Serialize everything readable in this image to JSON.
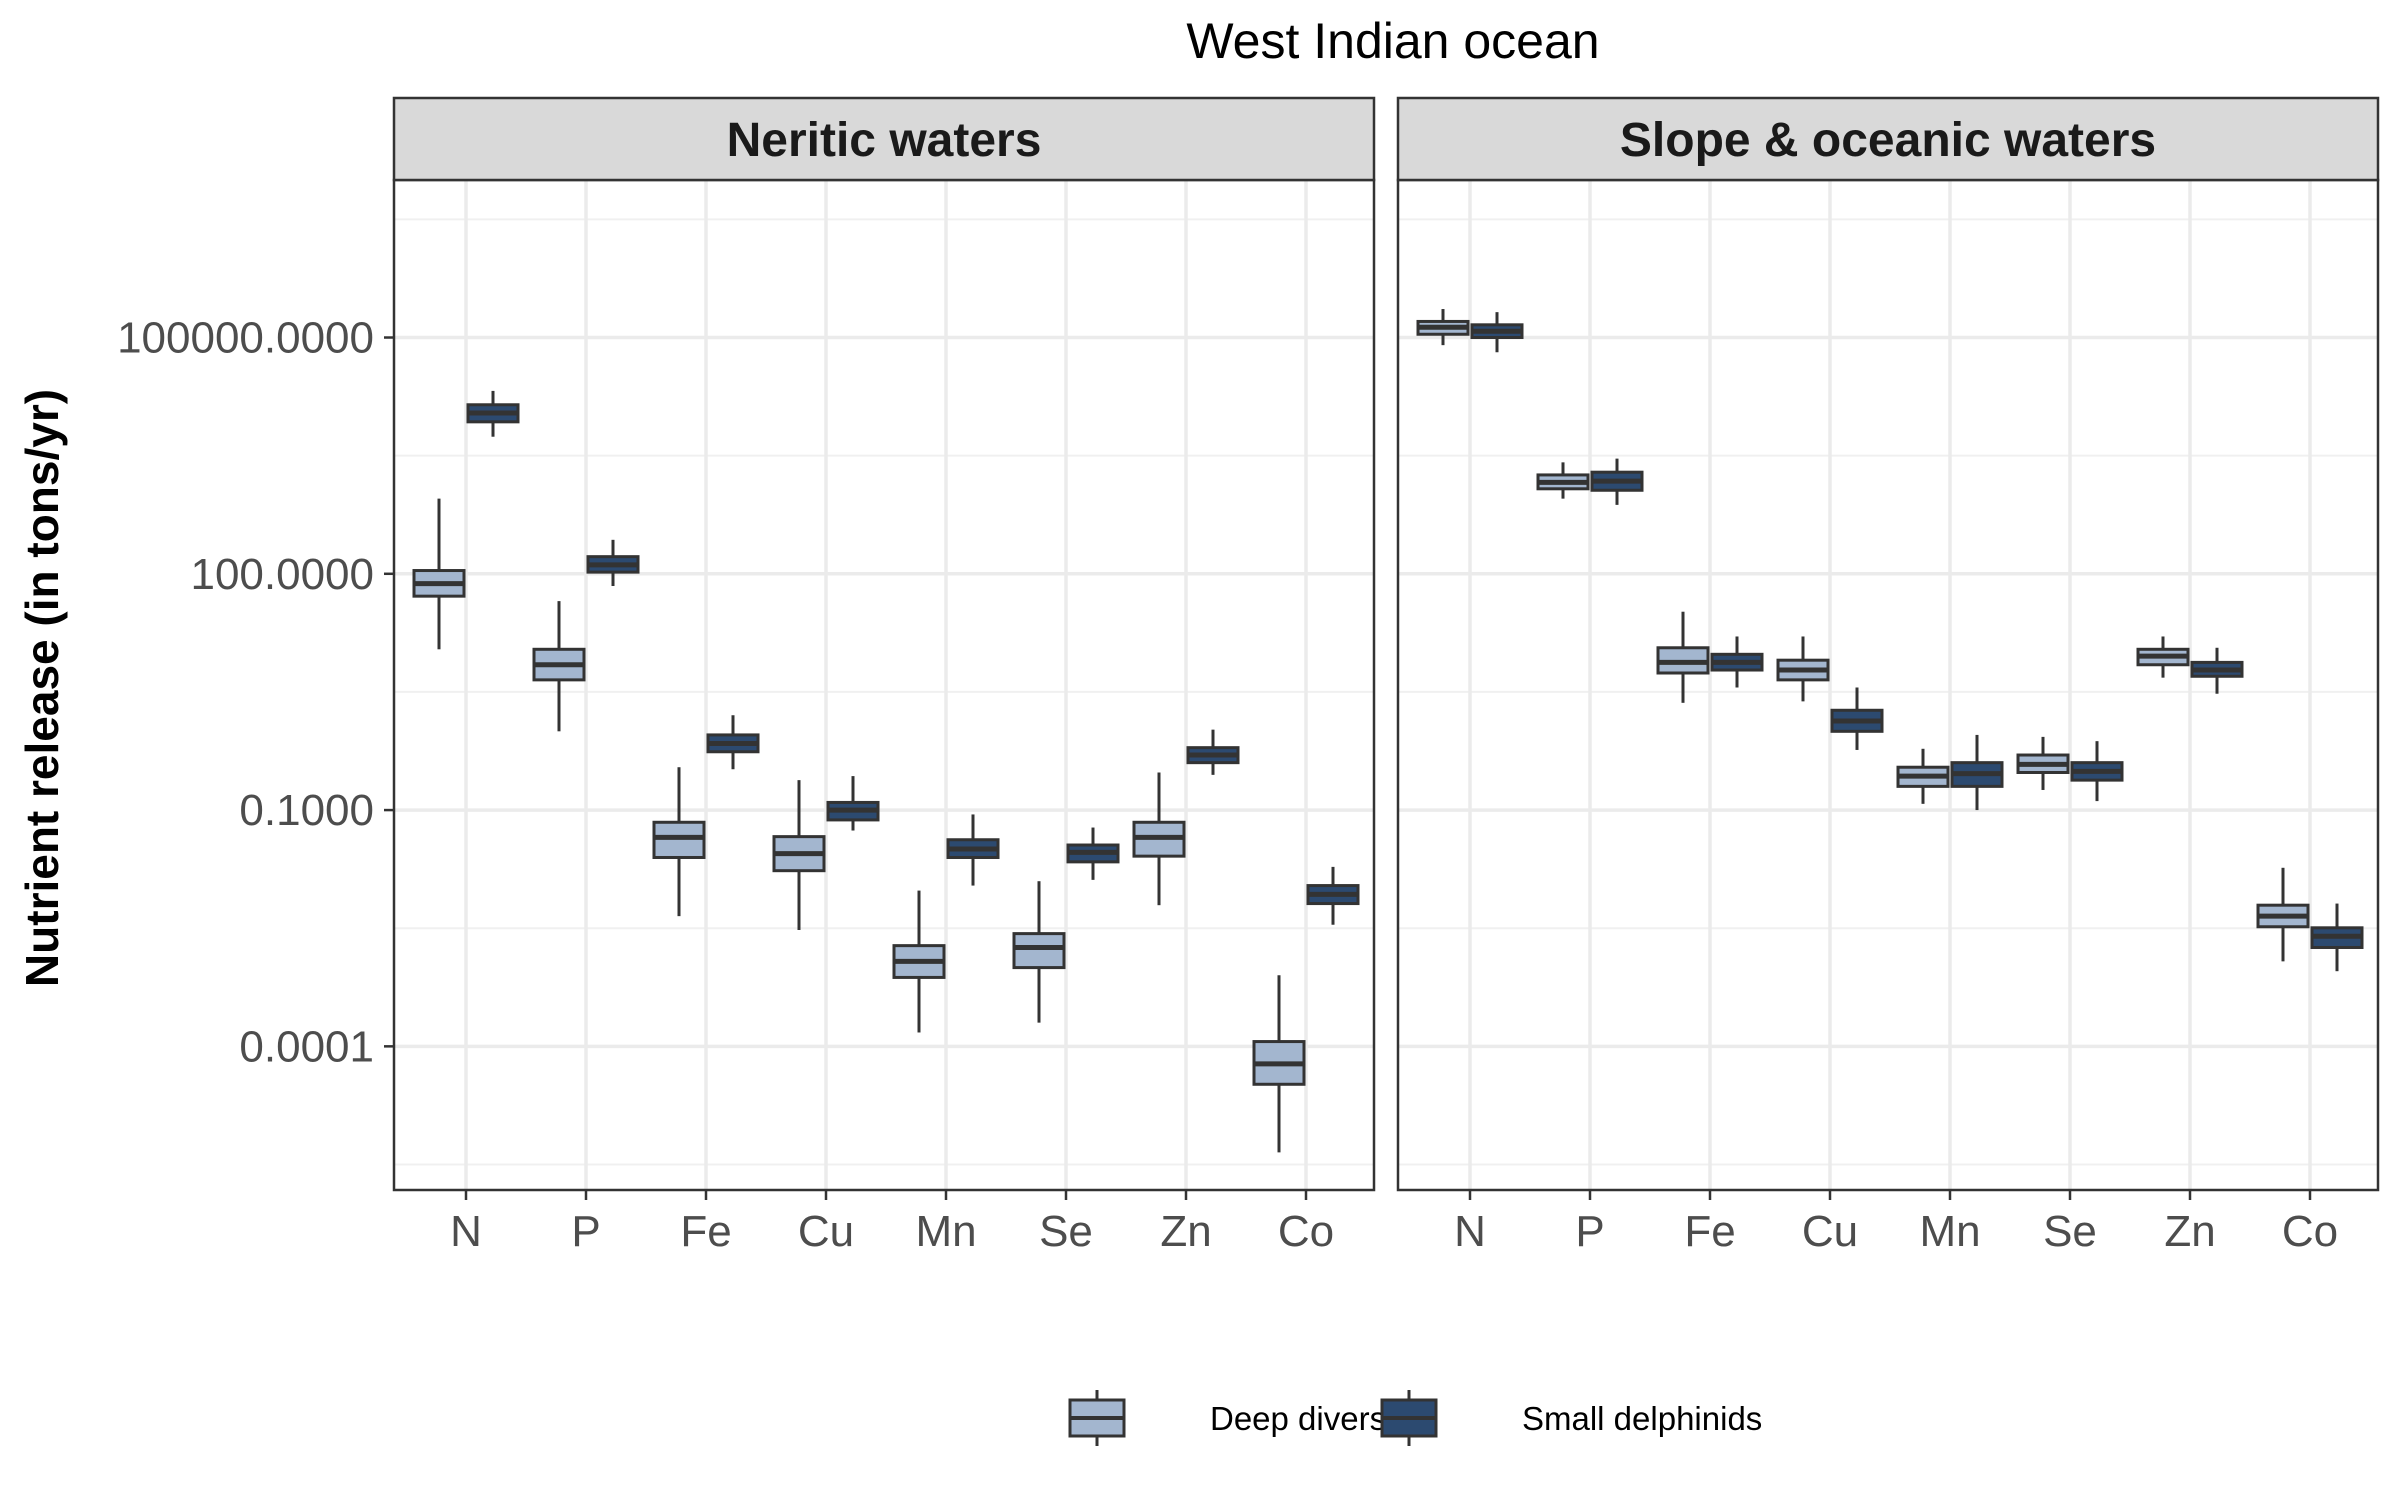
{
  "chart_data": {
    "type": "boxplot",
    "title": "West Indian ocean",
    "ylabel": "Nutrient release (in tons/yr)",
    "xlabel": "",
    "yscale": "log10",
    "ylim": [
      1.5e-06,
      10000000
    ],
    "yticks": [
      0.0001,
      0.1,
      100,
      100000
    ],
    "ytick_labels": [
      "0.0001",
      "0.1000",
      "100.0000",
      "100000.0000"
    ],
    "categories": [
      "N",
      "P",
      "Fe",
      "Cu",
      "Mn",
      "Se",
      "Zn",
      "Co"
    ],
    "legend": {
      "position": "bottom",
      "items": [
        {
          "name": "Deep divers",
          "color": "#a3b6cf"
        },
        {
          "name": "Small delphinids",
          "color": "#2c4a70"
        }
      ]
    },
    "outline_color": "#333333",
    "panels": [
      {
        "name": "Neritic waters",
        "series": [
          {
            "name": "Deep divers",
            "boxes": [
              {
                "category": "N",
                "min": 11,
                "q1": 52,
                "median": 75,
                "q3": 110,
                "max": 900
              },
              {
                "category": "P",
                "min": 1.0,
                "q1": 4.5,
                "median": 7,
                "q3": 11,
                "max": 45
              },
              {
                "category": "Fe",
                "min": 0.0045,
                "q1": 0.025,
                "median": 0.045,
                "q3": 0.07,
                "max": 0.35
              },
              {
                "category": "Cu",
                "min": 0.003,
                "q1": 0.017,
                "median": 0.028,
                "q3": 0.046,
                "max": 0.24
              },
              {
                "category": "Mn",
                "min": 0.00015,
                "q1": 0.00075,
                "median": 0.0012,
                "q3": 0.0019,
                "max": 0.0095
              },
              {
                "category": "Se",
                "min": 0.0002,
                "q1": 0.001,
                "median": 0.0018,
                "q3": 0.0027,
                "max": 0.0125
              },
              {
                "category": "Zn",
                "min": 0.0062,
                "q1": 0.026,
                "median": 0.045,
                "q3": 0.07,
                "max": 0.3
              },
              {
                "category": "Co",
                "min": 4.5e-06,
                "q1": 3.3e-05,
                "median": 6e-05,
                "q3": 0.000115,
                "max": 0.0008
              }
            ]
          },
          {
            "name": "Small delphinids",
            "boxes": [
              {
                "category": "N",
                "min": 5500,
                "q1": 8500,
                "median": 11000,
                "q3": 14000,
                "max": 21000
              },
              {
                "category": "P",
                "min": 70,
                "q1": 105,
                "median": 130,
                "q3": 165,
                "max": 270
              },
              {
                "category": "Fe",
                "min": 0.33,
                "q1": 0.55,
                "median": 0.7,
                "q3": 0.9,
                "max": 1.6
              },
              {
                "category": "Cu",
                "min": 0.055,
                "q1": 0.075,
                "median": 0.1,
                "q3": 0.125,
                "max": 0.27
              },
              {
                "category": "Mn",
                "min": 0.011,
                "q1": 0.025,
                "median": 0.032,
                "q3": 0.042,
                "max": 0.088
              },
              {
                "category": "Se",
                "min": 0.013,
                "q1": 0.022,
                "median": 0.029,
                "q3": 0.036,
                "max": 0.06
              },
              {
                "category": "Zn",
                "min": 0.28,
                "q1": 0.4,
                "median": 0.5,
                "q3": 0.62,
                "max": 1.05
              },
              {
                "category": "Co",
                "min": 0.0035,
                "q1": 0.0065,
                "median": 0.0085,
                "q3": 0.011,
                "max": 0.019
              }
            ]
          }
        ]
      },
      {
        "name": "Slope & oceanic waters",
        "series": [
          {
            "name": "Deep divers",
            "boxes": [
              {
                "category": "N",
                "min": 80000,
                "q1": 110000,
                "median": 135000,
                "q3": 160000,
                "max": 230000
              },
              {
                "category": "P",
                "min": 900,
                "q1": 1200,
                "median": 1450,
                "q3": 1800,
                "max": 2600
              },
              {
                "category": "Fe",
                "min": 2.3,
                "q1": 5.5,
                "median": 7.5,
                "q3": 11.5,
                "max": 33
              },
              {
                "category": "Cu",
                "min": 2.4,
                "q1": 4.5,
                "median": 6,
                "q3": 8,
                "max": 16
              },
              {
                "category": "Mn",
                "min": 0.12,
                "q1": 0.2,
                "median": 0.27,
                "q3": 0.35,
                "max": 0.6
              },
              {
                "category": "Se",
                "min": 0.18,
                "q1": 0.3,
                "median": 0.38,
                "q3": 0.5,
                "max": 0.85
              },
              {
                "category": "Zn",
                "min": 4.8,
                "q1": 7,
                "median": 9,
                "q3": 11,
                "max": 16
              },
              {
                "category": "Co",
                "min": 0.0012,
                "q1": 0.0033,
                "median": 0.0045,
                "q3": 0.0062,
                "max": 0.0185
              }
            ]
          },
          {
            "name": "Small delphinids",
            "boxes": [
              {
                "category": "N",
                "min": 65000,
                "q1": 100000,
                "median": 120000,
                "q3": 145000,
                "max": 210000
              },
              {
                "category": "P",
                "min": 750,
                "q1": 1150,
                "median": 1500,
                "q3": 1950,
                "max": 2900
              },
              {
                "category": "Fe",
                "min": 3.6,
                "q1": 6,
                "median": 7.5,
                "q3": 9.5,
                "max": 16
              },
              {
                "category": "Cu",
                "min": 0.58,
                "q1": 1.0,
                "median": 1.35,
                "q3": 1.85,
                "max": 3.6
              },
              {
                "category": "Mn",
                "min": 0.1,
                "q1": 0.2,
                "median": 0.29,
                "q3": 0.4,
                "max": 0.9
              },
              {
                "category": "Se",
                "min": 0.13,
                "q1": 0.24,
                "median": 0.31,
                "q3": 0.4,
                "max": 0.75
              },
              {
                "category": "Zn",
                "min": 3.0,
                "q1": 5.0,
                "median": 6,
                "q3": 7.5,
                "max": 11.5
              },
              {
                "category": "Co",
                "min": 0.0009,
                "q1": 0.0018,
                "median": 0.0025,
                "q3": 0.0032,
                "max": 0.0065
              }
            ]
          }
        ]
      }
    ]
  }
}
